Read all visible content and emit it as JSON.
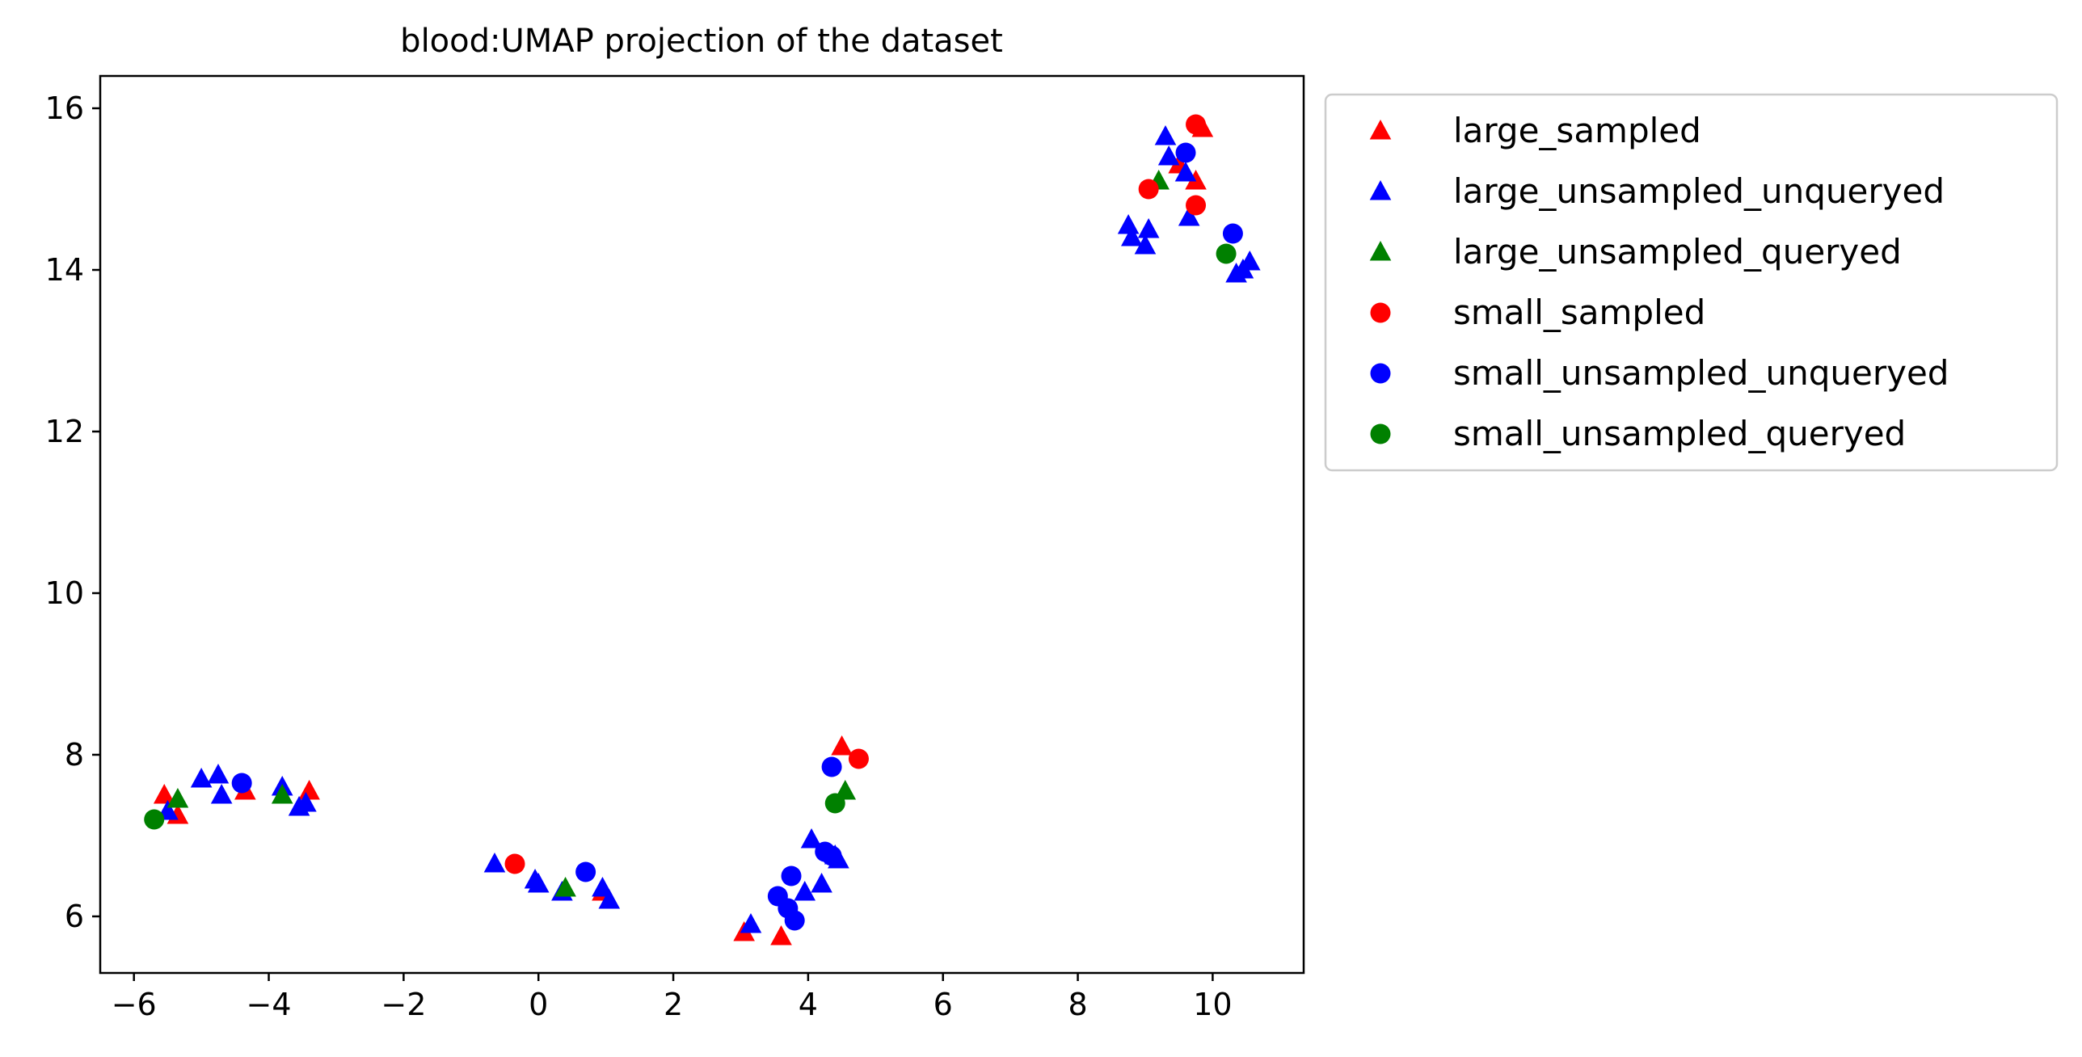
{
  "chart_data": {
    "type": "scatter",
    "title": "blood:UMAP projection of the dataset",
    "xlabel": "",
    "ylabel": "",
    "xlim": [
      -6.5,
      11.35
    ],
    "ylim": [
      5.3,
      16.4
    ],
    "xticks": [
      -6,
      -4,
      -2,
      0,
      2,
      4,
      6,
      8,
      10
    ],
    "yticks": [
      6,
      8,
      10,
      12,
      14,
      16
    ],
    "xtick_labels": [
      "−6",
      "−4",
      "−2",
      "0",
      "2",
      "4",
      "6",
      "8",
      "10"
    ],
    "ytick_labels": [
      "6",
      "8",
      "10",
      "12",
      "14",
      "16"
    ],
    "grid": false,
    "legend_position": "outside-upper-right",
    "series": [
      {
        "name": "large_sampled",
        "marker": "triangle",
        "color": "#ff0000",
        "points": [
          [
            -5.55,
            7.5
          ],
          [
            -5.35,
            7.25
          ],
          [
            -4.35,
            7.55
          ],
          [
            -3.4,
            7.55
          ],
          [
            0.95,
            6.3
          ],
          [
            3.05,
            5.8
          ],
          [
            3.6,
            5.75
          ],
          [
            4.5,
            8.1
          ],
          [
            9.5,
            15.3
          ],
          [
            9.75,
            15.1
          ],
          [
            9.85,
            15.75
          ]
        ]
      },
      {
        "name": "large_unsampled_unqueryed",
        "marker": "triangle",
        "color": "#0000ff",
        "points": [
          [
            -5.0,
            7.7
          ],
          [
            -4.75,
            7.75
          ],
          [
            -4.7,
            7.5
          ],
          [
            -3.8,
            7.6
          ],
          [
            -3.55,
            7.35
          ],
          [
            -3.45,
            7.4
          ],
          [
            -5.5,
            7.3
          ],
          [
            -0.65,
            6.65
          ],
          [
            -0.05,
            6.45
          ],
          [
            0.0,
            6.4
          ],
          [
            0.35,
            6.3
          ],
          [
            0.95,
            6.35
          ],
          [
            1.05,
            6.2
          ],
          [
            3.15,
            5.9
          ],
          [
            3.95,
            6.3
          ],
          [
            4.05,
            6.95
          ],
          [
            4.2,
            6.4
          ],
          [
            4.4,
            6.75
          ],
          [
            4.45,
            6.7
          ],
          [
            8.75,
            14.55
          ],
          [
            8.8,
            14.4
          ],
          [
            9.0,
            14.3
          ],
          [
            9.05,
            14.5
          ],
          [
            9.3,
            15.65
          ],
          [
            9.35,
            15.4
          ],
          [
            9.6,
            15.2
          ],
          [
            9.65,
            14.65
          ],
          [
            10.35,
            13.95
          ],
          [
            10.45,
            14.0
          ],
          [
            10.55,
            14.1
          ]
        ]
      },
      {
        "name": "large_unsampled_queryed",
        "marker": "triangle",
        "color": "#008000",
        "points": [
          [
            -5.35,
            7.45
          ],
          [
            -3.8,
            7.5
          ],
          [
            0.4,
            6.35
          ],
          [
            4.55,
            7.55
          ],
          [
            9.2,
            15.1
          ]
        ]
      },
      {
        "name": "small_sampled",
        "marker": "circle",
        "color": "#ff0000",
        "points": [
          [
            -0.35,
            6.65
          ],
          [
            4.75,
            7.95
          ],
          [
            9.05,
            15.0
          ],
          [
            9.75,
            15.8
          ],
          [
            9.75,
            14.8
          ]
        ]
      },
      {
        "name": "small_unsampled_unqueryed",
        "marker": "circle",
        "color": "#0000ff",
        "points": [
          [
            -4.4,
            7.65
          ],
          [
            0.7,
            6.55
          ],
          [
            3.55,
            6.25
          ],
          [
            3.7,
            6.1
          ],
          [
            3.75,
            6.5
          ],
          [
            3.8,
            5.95
          ],
          [
            4.25,
            6.8
          ],
          [
            4.35,
            6.75
          ],
          [
            4.35,
            7.85
          ],
          [
            9.6,
            15.45
          ],
          [
            10.3,
            14.45
          ]
        ]
      },
      {
        "name": "small_unsampled_queryed",
        "marker": "circle",
        "color": "#008000",
        "points": [
          [
            -5.7,
            7.2
          ],
          [
            4.4,
            7.4
          ],
          [
            10.2,
            14.2
          ]
        ]
      }
    ]
  }
}
